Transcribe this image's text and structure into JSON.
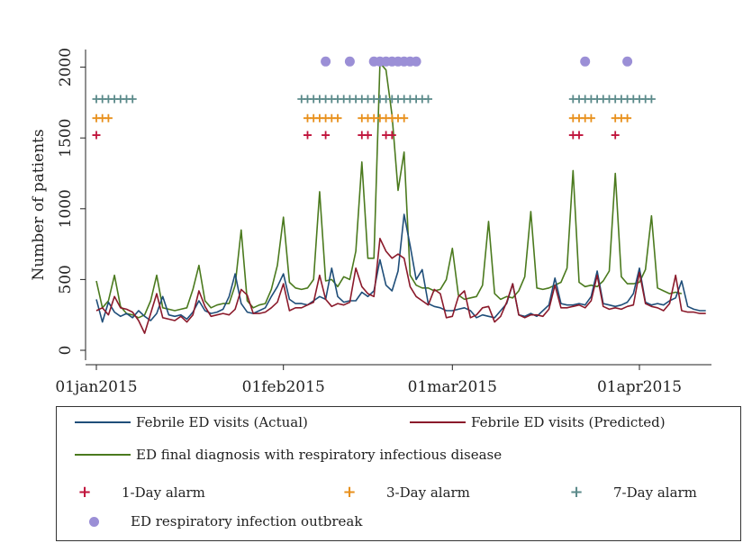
{
  "chart_data": {
    "type": "line",
    "ylabel": "Number of patients",
    "xlabel": "",
    "title": "",
    "xlim": [
      "2015-01-01",
      "2015-04-09"
    ],
    "ylim": [
      0,
      2050
    ],
    "yticks": [
      0,
      500,
      1000,
      1500,
      2000
    ],
    "xticks": [
      {
        "date": "2015-01-01",
        "label": "01jan2015"
      },
      {
        "date": "2015-02-01",
        "label": "01feb2015"
      },
      {
        "date": "2015-03-01",
        "label": "01mar2015"
      },
      {
        "date": "2015-04-01",
        "label": "01apr2015"
      }
    ],
    "x_start": "2015-01-01",
    "x_step_days": 1,
    "series": [
      {
        "name": "Febrile ED visits (Actual)",
        "color": "#1f4e79",
        "values": [
          360,
          200,
          340,
          270,
          240,
          260,
          230,
          280,
          240,
          210,
          260,
          380,
          250,
          240,
          250,
          220,
          270,
          350,
          280,
          260,
          270,
          290,
          380,
          540,
          330,
          270,
          260,
          280,
          300,
          380,
          450,
          540,
          360,
          330,
          330,
          320,
          350,
          380,
          360,
          580,
          380,
          340,
          350,
          350,
          410,
          380,
          420,
          640,
          460,
          420,
          560,
          960,
          740,
          500,
          570,
          330,
          310,
          300,
          280,
          280,
          290,
          300,
          280,
          230,
          250,
          240,
          230,
          280,
          330,
          470,
          250,
          240,
          260,
          240,
          280,
          320,
          510,
          330,
          320,
          320,
          330,
          320,
          380,
          560,
          330,
          320,
          310,
          320,
          340,
          400,
          580,
          340,
          320,
          330,
          320,
          350,
          370,
          490,
          310,
          290,
          280,
          280
        ]
      },
      {
        "name": "Febrile ED visits (Predicted)",
        "color": "#8b1a2b",
        "values": [
          280,
          300,
          250,
          380,
          300,
          290,
          270,
          210,
          120,
          260,
          400,
          230,
          220,
          210,
          240,
          200,
          250,
          420,
          310,
          240,
          250,
          260,
          250,
          290,
          430,
          390,
          260,
          260,
          270,
          300,
          340,
          470,
          280,
          300,
          300,
          320,
          340,
          530,
          360,
          310,
          330,
          320,
          340,
          580,
          450,
          400,
          380,
          790,
          700,
          650,
          680,
          650,
          450,
          380,
          350,
          320,
          430,
          400,
          230,
          240,
          380,
          420,
          230,
          250,
          300,
          310,
          200,
          240,
          340,
          470,
          250,
          230,
          250,
          250,
          240,
          290,
          460,
          300,
          300,
          310,
          320,
          300,
          350,
          530,
          310,
          290,
          300,
          290,
          310,
          320,
          550,
          330,
          310,
          300,
          280,
          330,
          530,
          280,
          270,
          270,
          260,
          260
        ]
      },
      {
        "name": "ED final diagnosis with respiratory infectious disease",
        "color": "#4b7a1e",
        "values": [
          490,
          300,
          350,
          530,
          310,
          260,
          250,
          230,
          250,
          350,
          530,
          300,
          290,
          280,
          290,
          300,
          430,
          600,
          350,
          300,
          320,
          330,
          330,
          460,
          850,
          350,
          300,
          320,
          330,
          430,
          600,
          940,
          480,
          440,
          430,
          440,
          500,
          1120,
          490,
          500,
          450,
          520,
          500,
          700,
          1330,
          650,
          650,
          2030,
          1980,
          1660,
          1130,
          1400,
          530,
          460,
          440,
          440,
          420,
          430,
          500,
          720,
          390,
          360,
          370,
          380,
          460,
          910,
          400,
          360,
          380,
          370,
          420,
          520,
          980,
          440,
          430,
          440,
          460,
          480,
          580,
          1270,
          480,
          450,
          460,
          450,
          490,
          560,
          1250,
          520,
          470,
          470,
          480,
          570,
          950,
          440,
          420,
          400,
          410,
          400
        ]
      }
    ],
    "markers": [
      {
        "name": "1-Day alarm",
        "symbol": "+",
        "color": "#c0143c",
        "y": 1520,
        "dates": [
          "2015-01-01",
          "2015-02-05",
          "2015-02-08",
          "2015-02-14",
          "2015-02-15",
          "2015-02-18",
          "2015-02-19",
          "2015-03-21",
          "2015-03-22",
          "2015-03-28"
        ]
      },
      {
        "name": "3-Day alarm",
        "symbol": "+",
        "color": "#e8901c",
        "y": 1640,
        "dates": [
          "2015-01-01",
          "2015-01-02",
          "2015-01-03",
          "2015-02-05",
          "2015-02-06",
          "2015-02-07",
          "2015-02-08",
          "2015-02-09",
          "2015-02-10",
          "2015-02-14",
          "2015-02-15",
          "2015-02-16",
          "2015-02-17",
          "2015-02-18",
          "2015-02-19",
          "2015-02-20",
          "2015-02-21",
          "2015-03-21",
          "2015-03-22",
          "2015-03-23",
          "2015-03-24",
          "2015-03-28",
          "2015-03-29",
          "2015-03-30"
        ]
      },
      {
        "name": "7-Day alarm",
        "symbol": "+",
        "color": "#5b8a8a",
        "y": 1775,
        "dates": [
          "2015-01-01",
          "2015-01-02",
          "2015-01-03",
          "2015-01-04",
          "2015-01-05",
          "2015-01-06",
          "2015-01-07",
          "2015-02-04",
          "2015-02-05",
          "2015-02-06",
          "2015-02-07",
          "2015-02-08",
          "2015-02-09",
          "2015-02-10",
          "2015-02-11",
          "2015-02-12",
          "2015-02-13",
          "2015-02-14",
          "2015-02-15",
          "2015-02-16",
          "2015-02-17",
          "2015-02-18",
          "2015-02-19",
          "2015-02-20",
          "2015-02-21",
          "2015-02-22",
          "2015-02-23",
          "2015-02-24",
          "2015-02-25",
          "2015-03-21",
          "2015-03-22",
          "2015-03-23",
          "2015-03-24",
          "2015-03-25",
          "2015-03-26",
          "2015-03-27",
          "2015-03-28",
          "2015-03-29",
          "2015-03-30",
          "2015-03-31",
          "2015-04-01",
          "2015-04-02",
          "2015-04-03"
        ]
      },
      {
        "name": "ED respiratory infection outbreak",
        "symbol": "dot",
        "color": "#9b8fd6",
        "y": 2040,
        "dates": [
          "2015-02-08",
          "2015-02-12",
          "2015-02-16",
          "2015-02-17",
          "2015-02-18",
          "2015-02-19",
          "2015-02-20",
          "2015-02-21",
          "2015-02-22",
          "2015-02-23",
          "2015-03-23",
          "2015-03-30"
        ]
      }
    ]
  },
  "legend": {
    "actual": "Febrile ED visits (Actual)",
    "predicted": "Febrile ED visits (Predicted)",
    "respiratory": "ED final diagnosis with respiratory infectious disease",
    "alarm1": "1-Day alarm",
    "alarm3": "3-Day alarm",
    "alarm7": "7-Day alarm",
    "outbreak": "ED respiratory infection outbreak",
    "plus_symbol": "+"
  },
  "colors": {
    "actual": "#1f4e79",
    "predicted": "#8b1a2b",
    "respiratory": "#4b7a1e",
    "alarm1": "#c0143c",
    "alarm3": "#e8901c",
    "alarm7": "#5b8a8a",
    "outbreak": "#9b8fd6"
  }
}
